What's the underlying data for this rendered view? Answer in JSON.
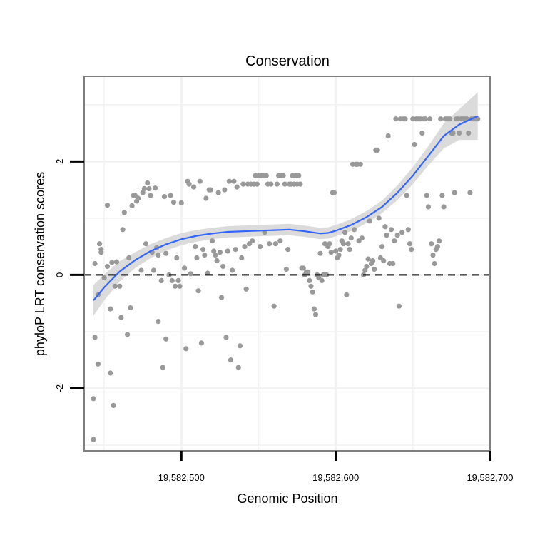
{
  "chart_data": {
    "type": "scatter",
    "title": "Conservation",
    "xlabel": "Genomic Position",
    "ylabel": "phyloP LRT conservation scores",
    "xlim": [
      19582437,
      19582700
    ],
    "ylim": [
      -3.1,
      3.5
    ],
    "x_ticks": [
      19582500,
      19582600,
      19582700
    ],
    "x_tick_labels": [
      "19,582,500",
      "19,582,600",
      "19,582,700"
    ],
    "y_ticks": [
      -2,
      0,
      2
    ],
    "y_tick_labels": [
      "-2",
      "0",
      "2"
    ],
    "reference_line": {
      "y": 0,
      "style": "dashed"
    },
    "colors": {
      "points": "#999999",
      "smooth": "#3366ff",
      "ribbon": "#d9d9d9",
      "frame": "#7f7f7f",
      "grid": "#f2f2f2"
    },
    "points": [
      [
        19582443,
        -2.9
      ],
      [
        19582443,
        -2.18
      ],
      [
        19582444,
        -1.1
      ],
      [
        19582444,
        0.2
      ],
      [
        19582446,
        -0.35
      ],
      [
        19582446,
        -1.57
      ],
      [
        19582447,
        0.55
      ],
      [
        19582448,
        0.4
      ],
      [
        19582448,
        0.45
      ],
      [
        19582450,
        -0.05
      ],
      [
        19582452,
        0.15
      ],
      [
        19582452,
        1.23
      ],
      [
        19582454,
        -0.6
      ],
      [
        19582454,
        -1.73
      ],
      [
        19582455,
        0.22
      ],
      [
        19582456,
        -2.3
      ],
      [
        19582457,
        -0.2
      ],
      [
        19582458,
        0.23
      ],
      [
        19582460,
        -0.2
      ],
      [
        19582461,
        -0.75
      ],
      [
        19582462,
        0.8
      ],
      [
        19582463,
        1.1
      ],
      [
        19582465,
        -1.05
      ],
      [
        19582466,
        0.3
      ],
      [
        19582467,
        -0.58
      ],
      [
        19582468,
        1.22
      ],
      [
        19582469,
        1.4
      ],
      [
        19582470,
        1.4
      ],
      [
        19582471,
        1.3
      ],
      [
        19582472,
        1.35
      ],
      [
        19582474,
        0.08
      ],
      [
        19582475,
        1.45
      ],
      [
        19582476,
        1.52
      ],
      [
        19582477,
        0.55
      ],
      [
        19582478,
        1.62
      ],
      [
        19582479,
        1.52
      ],
      [
        19582480,
        1.4
      ],
      [
        19582481,
        0.4
      ],
      [
        19582482,
        0.08
      ],
      [
        19582483,
        1.53
      ],
      [
        19582484,
        0.48
      ],
      [
        19582485,
        -0.82
      ],
      [
        19582485,
        0.35
      ],
      [
        19582487,
        -0.1
      ],
      [
        19582488,
        -1.63
      ],
      [
        19582489,
        1.38
      ],
      [
        19582490,
        -1.13
      ],
      [
        19582490,
        0.38
      ],
      [
        19582492,
        0.0
      ],
      [
        19582493,
        1.4
      ],
      [
        19582494,
        -0.1
      ],
      [
        19582495,
        1.28
      ],
      [
        19582496,
        -0.2
      ],
      [
        19582497,
        0.3
      ],
      [
        19582498,
        -0.1
      ],
      [
        19582499,
        -0.2
      ],
      [
        19582500,
        1.27
      ],
      [
        19582502,
        0.12
      ],
      [
        19582503,
        -1.3
      ],
      [
        19582504,
        1.65
      ],
      [
        19582505,
        1.6
      ],
      [
        19582506,
        0.02
      ],
      [
        19582508,
        1.55
      ],
      [
        19582509,
        0.5
      ],
      [
        19582510,
        0.3
      ],
      [
        19582511,
        -0.28
      ],
      [
        19582512,
        1.65
      ],
      [
        19582513,
        -1.2
      ],
      [
        19582514,
        0.45
      ],
      [
        19582515,
        0.35
      ],
      [
        19582516,
        1.35
      ],
      [
        19582517,
        0.03
      ],
      [
        19582518,
        1.5
      ],
      [
        19582519,
        1.5
      ],
      [
        19582520,
        0.6
      ],
      [
        19582521,
        0.42
      ],
      [
        19582522,
        0.35
      ],
      [
        19582523,
        0.25
      ],
      [
        19582524,
        1.45
      ],
      [
        19582525,
        0.4
      ],
      [
        19582526,
        -0.4
      ],
      [
        19582527,
        0.15
      ],
      [
        19582528,
        1.5
      ],
      [
        19582529,
        -1.1
      ],
      [
        19582530,
        0.42
      ],
      [
        19582531,
        1.65
      ],
      [
        19582532,
        -1.5
      ],
      [
        19582533,
        0.08
      ],
      [
        19582534,
        1.65
      ],
      [
        19582535,
        0.45
      ],
      [
        19582536,
        1.55
      ],
      [
        19582537,
        -1.63
      ],
      [
        19582538,
        -1.25
      ],
      [
        19582539,
        0.3
      ],
      [
        19582540,
        1.6
      ],
      [
        19582541,
        0.5
      ],
      [
        19582542,
        -0.25
      ],
      [
        19582543,
        1.6
      ],
      [
        19582544,
        0.55
      ],
      [
        19582545,
        1.6
      ],
      [
        19582546,
        0.6
      ],
      [
        19582547,
        1.6
      ],
      [
        19582548,
        1.75
      ],
      [
        19582549,
        1.6
      ],
      [
        19582550,
        1.75
      ],
      [
        19582551,
        0.5
      ],
      [
        19582552,
        1.75
      ],
      [
        19582553,
        1.75
      ],
      [
        19582554,
        0.75
      ],
      [
        19582555,
        1.75
      ],
      [
        19582556,
        1.6
      ],
      [
        19582557,
        0.55
      ],
      [
        19582558,
        1.6
      ],
      [
        19582560,
        -0.55
      ],
      [
        19582561,
        0.55
      ],
      [
        19582562,
        1.6
      ],
      [
        19582563,
        1.75
      ],
      [
        19582564,
        0.6
      ],
      [
        19582565,
        1.75
      ],
      [
        19582566,
        1.75
      ],
      [
        19582567,
        1.6
      ],
      [
        19582568,
        0.1
      ],
      [
        19582569,
        0.45
      ],
      [
        19582570,
        1.6
      ],
      [
        19582571,
        1.6
      ],
      [
        19582572,
        1.75
      ],
      [
        19582573,
        1.6
      ],
      [
        19582574,
        1.75
      ],
      [
        19582575,
        1.6
      ],
      [
        19582576,
        1.75
      ],
      [
        19582577,
        1.6
      ],
      [
        19582578,
        0.12
      ],
      [
        19582579,
        0.12
      ],
      [
        19582580,
        0.0
      ],
      [
        19582581,
        0.05
      ],
      [
        19582582,
        0.05
      ],
      [
        19582583,
        -0.1
      ],
      [
        19582584,
        -0.2
      ],
      [
        19582585,
        -0.3
      ],
      [
        19582586,
        -0.6
      ],
      [
        19582587,
        -0.7
      ],
      [
        19582588,
        0.0
      ],
      [
        19582589,
        -0.05
      ],
      [
        19582590,
        0.38
      ],
      [
        19582591,
        -0.1
      ],
      [
        19582592,
        0.0
      ],
      [
        19582593,
        0.55
      ],
      [
        19582594,
        0.0
      ],
      [
        19582595,
        0.5
      ],
      [
        19582596,
        0.55
      ],
      [
        19582597,
        0.4
      ],
      [
        19582598,
        1.45
      ],
      [
        19582599,
        1.45
      ],
      [
        19582600,
        0.42
      ],
      [
        19582601,
        0.3
      ],
      [
        19582602,
        0.35
      ],
      [
        19582603,
        0.45
      ],
      [
        19582604,
        0.6
      ],
      [
        19582605,
        0.55
      ],
      [
        19582606,
        0.75
      ],
      [
        19582607,
        -0.35
      ],
      [
        19582608,
        0.55
      ],
      [
        19582609,
        0.45
      ],
      [
        19582610,
        0.65
      ],
      [
        19582611,
        1.95
      ],
      [
        19582612,
        0.8
      ],
      [
        19582613,
        1.95
      ],
      [
        19582614,
        1.95
      ],
      [
        19582615,
        0.6
      ],
      [
        19582616,
        1.95
      ],
      [
        19582617,
        0.65
      ],
      [
        19582618,
        0.0
      ],
      [
        19582619,
        0.08
      ],
      [
        19582620,
        0.15
      ],
      [
        19582621,
        0.28
      ],
      [
        19582622,
        0.95
      ],
      [
        19582623,
        0.2
      ],
      [
        19582624,
        0.25
      ],
      [
        19582625,
        0.1
      ],
      [
        19582626,
        2.2
      ],
      [
        19582627,
        2.2
      ],
      [
        19582628,
        1.0
      ],
      [
        19582629,
        0.3
      ],
      [
        19582630,
        0.5
      ],
      [
        19582631,
        0.25
      ],
      [
        19582632,
        0.85
      ],
      [
        19582633,
        0.7
      ],
      [
        19582634,
        2.45
      ],
      [
        19582635,
        0.2
      ],
      [
        19582636,
        0.8
      ],
      [
        19582637,
        0.2
      ],
      [
        19582638,
        0.6
      ],
      [
        19582639,
        2.75
      ],
      [
        19582640,
        0.7
      ],
      [
        19582641,
        -0.55
      ],
      [
        19582642,
        2.75
      ],
      [
        19582643,
        0.75
      ],
      [
        19582644,
        2.75
      ],
      [
        19582645,
        2.75
      ],
      [
        19582646,
        1.4
      ],
      [
        19582647,
        0.8
      ],
      [
        19582648,
        0.55
      ],
      [
        19582649,
        0.45
      ],
      [
        19582650,
        2.75
      ],
      [
        19582651,
        2.3
      ],
      [
        19582652,
        2.75
      ],
      [
        19582653,
        2.75
      ],
      [
        19582654,
        2.75
      ],
      [
        19582655,
        2.75
      ],
      [
        19582656,
        2.5
      ],
      [
        19582657,
        2.75
      ],
      [
        19582658,
        2.75
      ],
      [
        19582659,
        1.4
      ],
      [
        19582660,
        1.2
      ],
      [
        19582661,
        2.75
      ],
      [
        19582662,
        0.55
      ],
      [
        19582663,
        0.35
      ],
      [
        19582664,
        0.2
      ],
      [
        19582665,
        0.45
      ],
      [
        19582666,
        0.5
      ],
      [
        19582667,
        0.6
      ],
      [
        19582668,
        2.75
      ],
      [
        19582669,
        1.4
      ],
      [
        19582670,
        1.2
      ],
      [
        19582671,
        2.75
      ],
      [
        19582672,
        2.75
      ],
      [
        19582673,
        2.75
      ],
      [
        19582674,
        2.75
      ],
      [
        19582675,
        2.5
      ],
      [
        19582676,
        2.5
      ],
      [
        19582677,
        1.45
      ],
      [
        19582678,
        2.75
      ],
      [
        19582679,
        2.75
      ],
      [
        19582680,
        2.5
      ],
      [
        19582681,
        2.75
      ],
      [
        19582682,
        2.75
      ],
      [
        19582683,
        2.75
      ],
      [
        19582684,
        2.75
      ],
      [
        19582685,
        2.75
      ],
      [
        19582686,
        2.5
      ],
      [
        19582687,
        1.45
      ],
      [
        19582688,
        2.75
      ],
      [
        19582689,
        2.75
      ],
      [
        19582690,
        2.75
      ],
      [
        19582691,
        2.75
      ],
      [
        19582692,
        2.75
      ]
    ],
    "smooth_fit": [
      [
        19582443,
        -0.45
      ],
      [
        19582450,
        -0.22
      ],
      [
        19582460,
        0.06
      ],
      [
        19582470,
        0.26
      ],
      [
        19582480,
        0.42
      ],
      [
        19582490,
        0.54
      ],
      [
        19582500,
        0.63
      ],
      [
        19582510,
        0.69
      ],
      [
        19582520,
        0.73
      ],
      [
        19582530,
        0.76
      ],
      [
        19582540,
        0.77
      ],
      [
        19582550,
        0.78
      ],
      [
        19582560,
        0.79
      ],
      [
        19582570,
        0.8
      ],
      [
        19582580,
        0.77
      ],
      [
        19582590,
        0.73
      ],
      [
        19582595,
        0.74
      ],
      [
        19582600,
        0.78
      ],
      [
        19582610,
        0.88
      ],
      [
        19582620,
        1.02
      ],
      [
        19582630,
        1.2
      ],
      [
        19582640,
        1.45
      ],
      [
        19582650,
        1.75
      ],
      [
        19582660,
        2.1
      ],
      [
        19582670,
        2.45
      ],
      [
        19582680,
        2.65
      ],
      [
        19582692,
        2.8
      ]
    ],
    "smooth_band_halfwidth": [
      [
        19582443,
        0.27
      ],
      [
        19582455,
        0.2
      ],
      [
        19582470,
        0.14
      ],
      [
        19582490,
        0.11
      ],
      [
        19582520,
        0.1
      ],
      [
        19582550,
        0.1
      ],
      [
        19582575,
        0.1
      ],
      [
        19582600,
        0.1
      ],
      [
        19582630,
        0.11
      ],
      [
        19582660,
        0.17
      ],
      [
        19582680,
        0.27
      ],
      [
        19582692,
        0.42
      ]
    ]
  }
}
